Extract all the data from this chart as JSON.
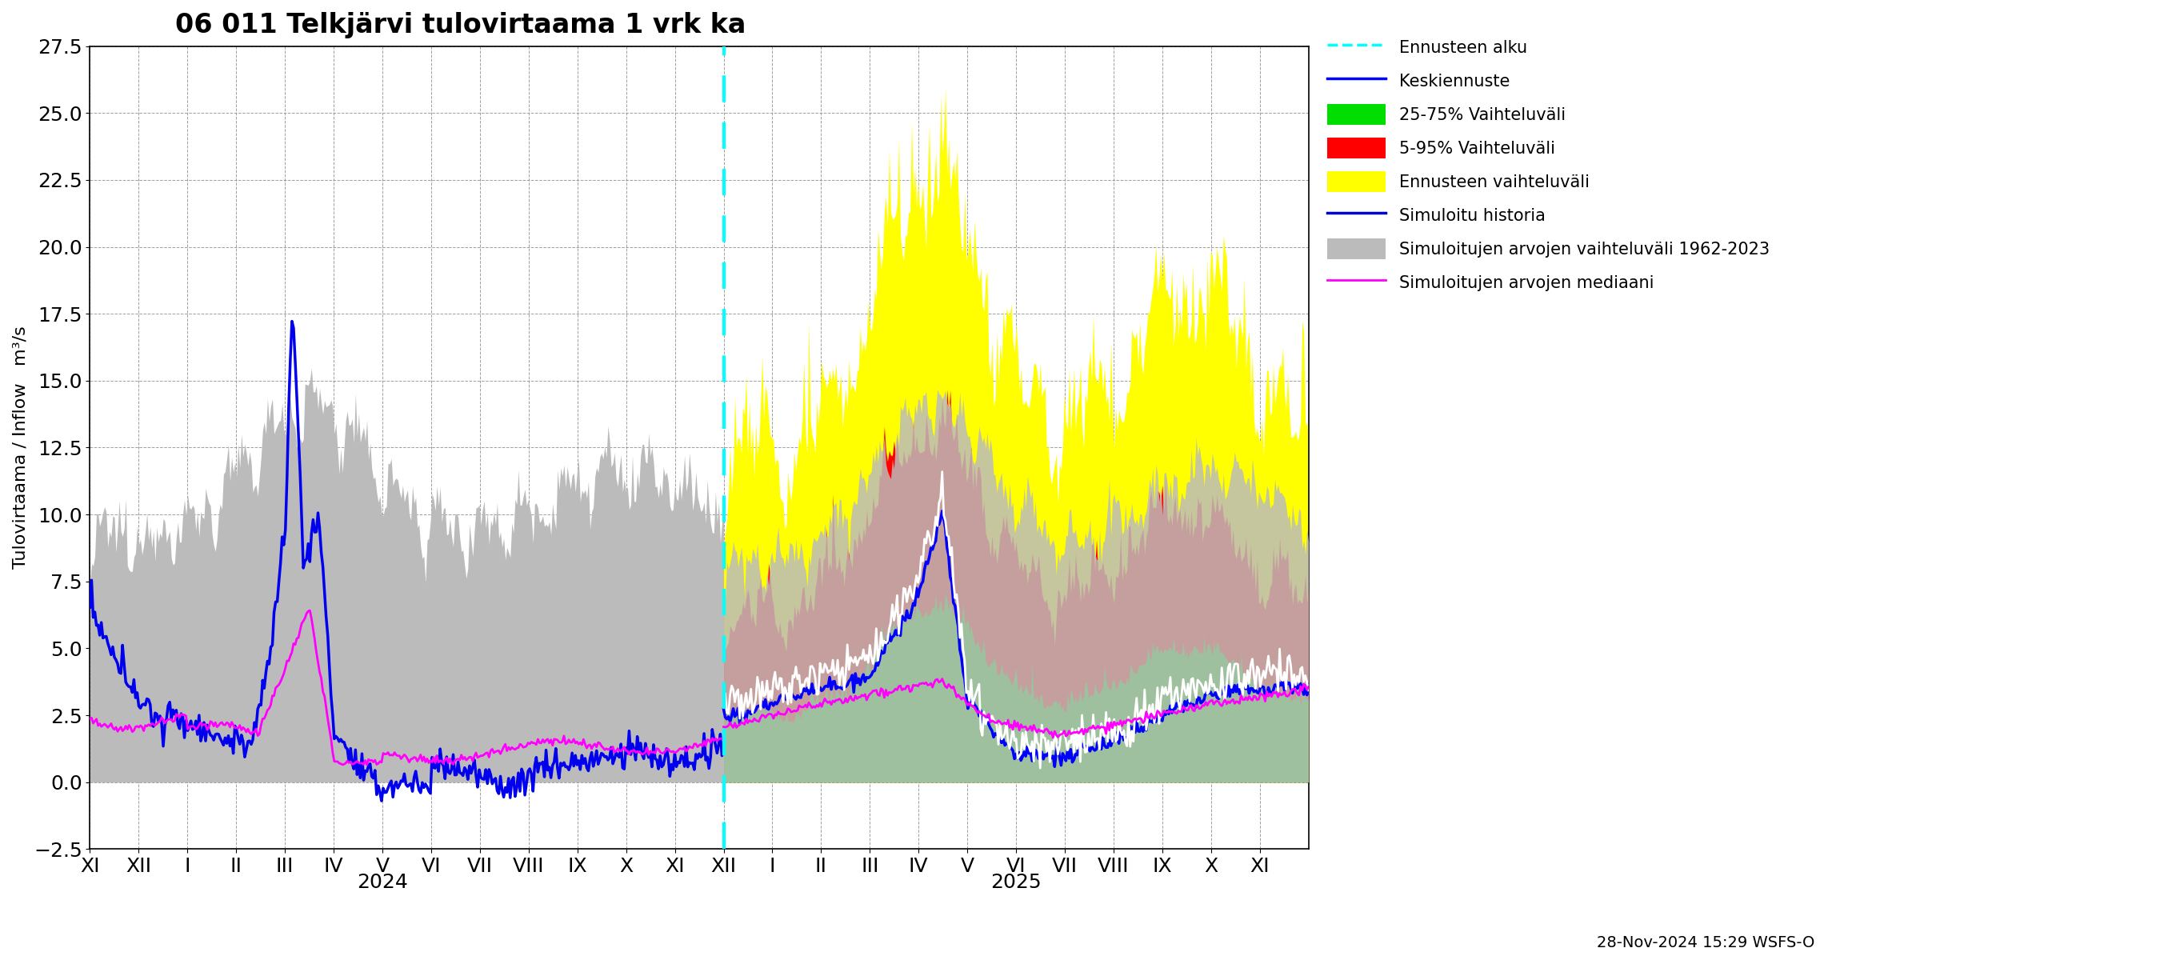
{
  "title": "06 011 Telkjärvi tulovirtaama 1 vrk ka",
  "ylabel": "Tulovirtaama / Inflow   m³/s",
  "ylim": [
    -2.5,
    27.5
  ],
  "yticks": [
    -2.5,
    0.0,
    2.5,
    5.0,
    7.5,
    10.0,
    12.5,
    15.0,
    17.5,
    20.0,
    22.5,
    25.0,
    27.5
  ],
  "xlabel_months_hist": [
    "XI",
    "XII",
    "I",
    "II",
    "III",
    "IV",
    "V",
    "VI",
    "VII",
    "VIII",
    "IX",
    "X",
    "XI"
  ],
  "xlabel_months_fc": [
    "XII",
    "I",
    "II",
    "III",
    "IV",
    "V",
    "VI",
    "VII",
    "VIII",
    "IX",
    "X",
    "XI"
  ],
  "year_hist": "2024",
  "year_fc": "2025",
  "footnote": "28-Nov-2024 15:29 WSFS-O",
  "legend_entries": [
    {
      "label": "Ennusteen alku",
      "color": "#00ffff",
      "linestyle": "dashed",
      "linewidth": 2.5
    },
    {
      "label": "Keskiennuste",
      "color": "#0000ff",
      "linestyle": "solid",
      "linewidth": 2.5
    },
    {
      "label": "25-75% Vaihteluväli",
      "color": "#00cc00",
      "patch": true
    },
    {
      "label": "5-95% Vaihteluväli",
      "color": "#ff0000",
      "patch": true
    },
    {
      "label": "Ennusteen vaihteluväli",
      "color": "#ffff00",
      "patch": true
    },
    {
      "label": "Simuloitu historia",
      "color": "#0000cc",
      "linestyle": "solid",
      "linewidth": 2.5
    },
    {
      "label": "Simuloitujen arvojen vaihteluväli 1962-2023",
      "color": "#aaaaaa",
      "patch": true
    },
    {
      "label": "Simuloitujen arvojen mediaani",
      "color": "#ff00ff",
      "linestyle": "solid",
      "linewidth": 2.0
    }
  ],
  "colors": {
    "sim_history": "#0000ee",
    "median_hist": "#ff00ff",
    "background_hist_range": "#bbbbbb",
    "forecast_range": "#ffff00",
    "p5_95": "#ff0000",
    "p25_75": "#00dd00",
    "central_forecast": "#0000ff",
    "forecast_start": "#00ffff",
    "sim_median_fc": "#ffffff",
    "grid": "#888888"
  }
}
